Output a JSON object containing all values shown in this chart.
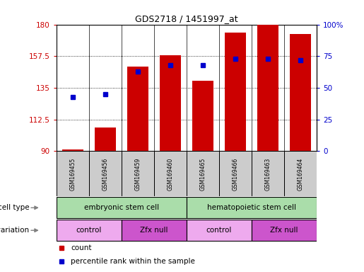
{
  "title": "GDS2718 / 1451997_at",
  "samples": [
    "GSM169455",
    "GSM169456",
    "GSM169459",
    "GSM169460",
    "GSM169465",
    "GSM169466",
    "GSM169463",
    "GSM169464"
  ],
  "counts": [
    91,
    107,
    150,
    158,
    140,
    174,
    180,
    173
  ],
  "percentile_ranks": [
    43,
    45,
    63,
    68,
    68,
    73,
    73,
    72
  ],
  "y_min": 90,
  "y_max": 180,
  "y_ticks": [
    90,
    112.5,
    135,
    157.5,
    180
  ],
  "y_tick_labels": [
    "90",
    "112.5",
    "135",
    "157.5",
    "180"
  ],
  "y2_ticks": [
    0,
    25,
    50,
    75,
    100
  ],
  "y2_tick_labels": [
    "0",
    "25",
    "50",
    "75",
    "100%"
  ],
  "bar_color": "#cc0000",
  "dot_color": "#0000cc",
  "cell_type_labels": [
    "embryonic stem cell",
    "hematopoietic stem cell"
  ],
  "cell_type_ranges": [
    [
      0,
      4
    ],
    [
      4,
      8
    ]
  ],
  "cell_type_color": "#aaddaa",
  "genotype_labels": [
    "control",
    "Zfx null",
    "control",
    "Zfx null"
  ],
  "genotype_ranges": [
    [
      0,
      2
    ],
    [
      2,
      4
    ],
    [
      4,
      6
    ],
    [
      6,
      8
    ]
  ],
  "genotype_colors": [
    "#eeaaee",
    "#cc55cc",
    "#eeaaee",
    "#cc55cc"
  ],
  "sample_box_color": "#cccccc",
  "legend_count_color": "#cc0000",
  "legend_dot_color": "#0000cc",
  "bg_color": "#ffffff",
  "tick_color_left": "#cc0000",
  "tick_color_right": "#0000cc",
  "label_text_color": "#555555"
}
